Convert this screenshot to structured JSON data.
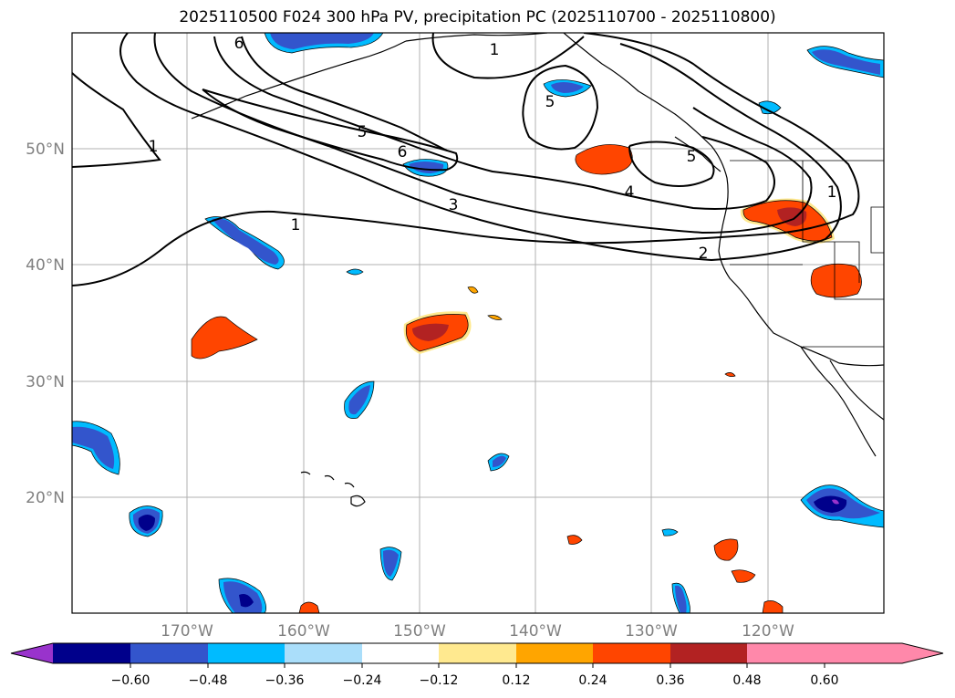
{
  "title": "2025110500 F024 300 hPa PV, precipitation PC (2025110700 - 2025110800)",
  "latitude_labels": [
    "50°N",
    "40°N",
    "30°N",
    "20°N"
  ],
  "longitude_labels": [
    "170°W",
    "160°W",
    "150°W",
    "140°W",
    "130°W",
    "120°W"
  ],
  "contour_labels": [
    "6",
    "1",
    "1",
    "5",
    "6",
    "5",
    "3",
    "4",
    "1",
    "5",
    "2",
    "1"
  ],
  "colorbar": {
    "tick_labels": [
      "−0.60",
      "−0.48",
      "−0.36",
      "−0.24",
      "−0.12",
      "0.12",
      "0.24",
      "0.36",
      "0.48",
      "0.60"
    ],
    "colors": [
      "#9933cc",
      "#00008b",
      "#3355cc",
      "#00bbff",
      "#aadefa",
      "#ffffff",
      "#ffe98f",
      "#ffa500",
      "#ff4500",
      "#b22222",
      "#ff88aa"
    ]
  },
  "colors": {
    "contour": "#000000",
    "gridline": "#b0b0b0",
    "label_gray": "#808080"
  }
}
